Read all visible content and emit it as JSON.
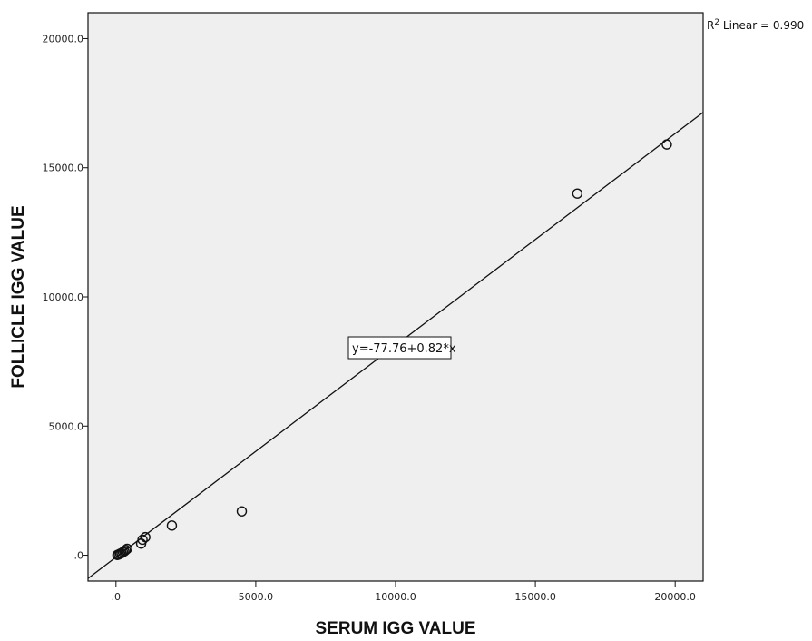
{
  "chart_data": {
    "type": "scatter",
    "title": "",
    "xlabel": "SERUM IGG VALUE",
    "ylabel": "FOLLICLE IGG VALUE",
    "xlim": [
      -1000,
      21000
    ],
    "ylim": [
      -1000,
      21000
    ],
    "xticks": [
      0,
      5000,
      10000,
      15000,
      20000
    ],
    "xtick_labels": [
      ".0",
      "5000.0",
      "10000.0",
      "15000.0",
      "20000.0"
    ],
    "yticks": [
      0,
      5000,
      10000,
      15000,
      20000
    ],
    "ytick_labels": [
      ".0",
      "5000.0",
      "10000.0",
      "15000.0",
      "20000.0"
    ],
    "grid": false,
    "points": [
      {
        "x": 50,
        "y": 10
      },
      {
        "x": 100,
        "y": 30
      },
      {
        "x": 150,
        "y": 60
      },
      {
        "x": 200,
        "y": 80
      },
      {
        "x": 250,
        "y": 120
      },
      {
        "x": 300,
        "y": 150
      },
      {
        "x": 350,
        "y": 200
      },
      {
        "x": 400,
        "y": 250
      },
      {
        "x": 900,
        "y": 450
      },
      {
        "x": 950,
        "y": 600
      },
      {
        "x": 1050,
        "y": 700
      },
      {
        "x": 2000,
        "y": 1150
      },
      {
        "x": 4500,
        "y": 1700
      },
      {
        "x": 16500,
        "y": 14000
      },
      {
        "x": 19700,
        "y": 15900
      }
    ],
    "fit_line": {
      "intercept": -77.76,
      "slope": 0.82
    },
    "equation_label": "y=-77.76+0.82*x",
    "r2_label": "R",
    "r2_sup": "2",
    "r2_text": " Linear = 0.990"
  }
}
